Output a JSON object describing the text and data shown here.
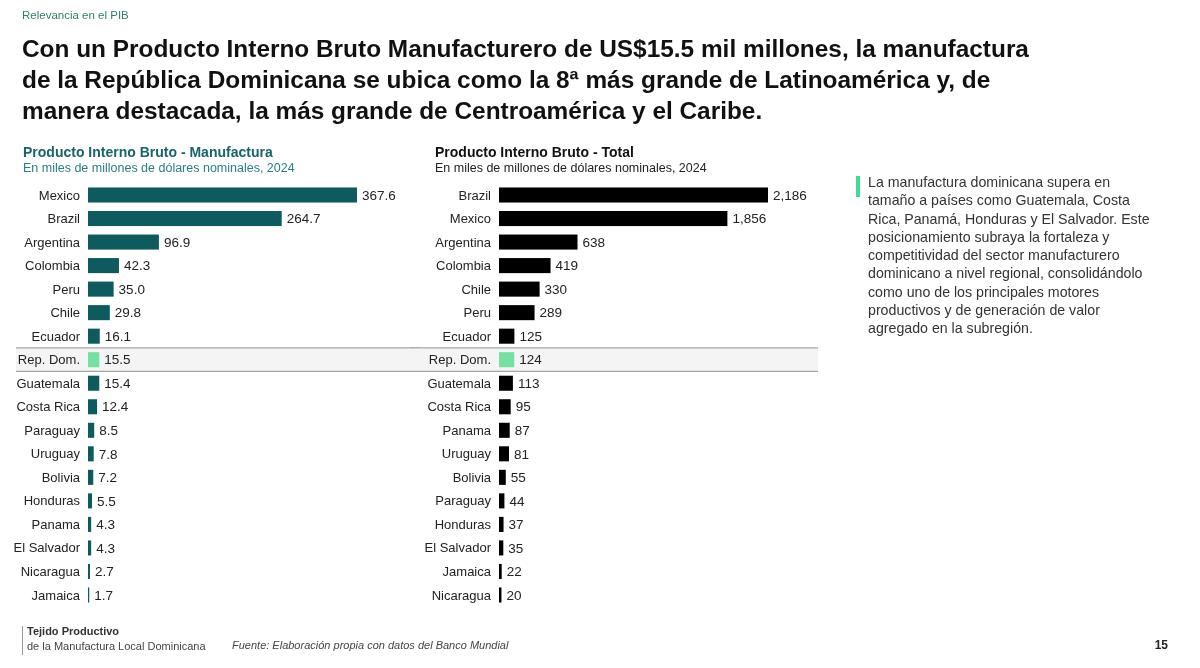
{
  "chart_data": [
    {
      "type": "other",
      "title": "Con un Producto Interno Bruto Manufacturero de US$15.5 mil millones, la manufactura de la República Dominicana se ubica como la 8ª más grande de Latinoamérica y, de manera destacada, la más grande de Centroamérica y el Caribe.",
      "annotations": [
        "Relevancia en el PIB"
      ]
    },
    {
      "type": "bar",
      "orientation": "horizontal",
      "title": "Producto Interno Bruto - Manufactura",
      "subtitle": "En miles de millones de dólares nominales, 2024",
      "categories": [
        "Mexico",
        "Brazil",
        "Argentina",
        "Colombia",
        "Peru",
        "Chile",
        "Ecuador",
        "Rep. Dom.",
        "Guatemala",
        "Costa Rica",
        "Paraguay",
        "Uruguay",
        "Bolivia",
        "Honduras",
        "Panama",
        "El Salvador",
        "Nicaragua",
        "Jamaica"
      ],
      "values": [
        367.6,
        264.7,
        96.9,
        42.3,
        35.0,
        29.8,
        16.1,
        15.5,
        15.4,
        12.4,
        8.5,
        7.8,
        7.2,
        5.5,
        4.3,
        4.3,
        2.7,
        1.7
      ],
      "value_labels": [
        "367.6",
        "264.7",
        "96.9",
        "42.3",
        "35.0",
        "29.8",
        "16.1",
        "15.5",
        "15.4",
        "12.4",
        "8.5",
        "7.8",
        "7.2",
        "5.5",
        "4.3",
        "4.3",
        "2.7",
        "1.7"
      ],
      "colors": [
        "#0d5a5f",
        "#0d5a5f",
        "#0d5a5f",
        "#0d5a5f",
        "#0d5a5f",
        "#0d5a5f",
        "#0d5a5f",
        "#74e0a2",
        "#0d5a5f",
        "#0d5a5f",
        "#0d5a5f",
        "#0d5a5f",
        "#0d5a5f",
        "#0d5a5f",
        "#0d5a5f",
        "#0d5a5f",
        "#0d5a5f",
        "#0d5a5f"
      ],
      "bands": [
        {
          "axis": "y",
          "from": "Rep. Dom.",
          "to": "Rep. Dom.",
          "color": "#f4f4f4"
        }
      ],
      "tick_labels": "y"
    },
    {
      "type": "bar",
      "orientation": "horizontal",
      "title": "Producto Interno Bruto - Total",
      "subtitle": "En miles de millones de dólares nominales, 2024",
      "categories": [
        "Brazil",
        "Mexico",
        "Argentina",
        "Colombia",
        "Chile",
        "Peru",
        "Ecuador",
        "Rep. Dom.",
        "Guatemala",
        "Costa Rica",
        "Panama",
        "Uruguay",
        "Bolivia",
        "Paraguay",
        "Honduras",
        "El Salvador",
        "Jamaica",
        "Nicaragua"
      ],
      "values": [
        2186,
        1856,
        638,
        419,
        330,
        289,
        125,
        124,
        113,
        95,
        87,
        81,
        55,
        44,
        37,
        35,
        22,
        20
      ],
      "value_labels": [
        "2,186",
        "1,856",
        "638",
        "419",
        "330",
        "289",
        "125",
        "124",
        "113",
        "95",
        "87",
        "81",
        "55",
        "44",
        "37",
        "35",
        "22",
        "20"
      ],
      "colors": [
        "#000000",
        "#000000",
        "#000000",
        "#000000",
        "#000000",
        "#000000",
        "#000000",
        "#74e0a2",
        "#000000",
        "#000000",
        "#000000",
        "#000000",
        "#000000",
        "#000000",
        "#000000",
        "#000000",
        "#000000",
        "#000000"
      ],
      "bands": [
        {
          "axis": "y",
          "from": "Rep. Dom.",
          "to": "Rep. Dom.",
          "color": "#f4f4f4"
        }
      ],
      "tick_labels": "y"
    },
    {
      "type": "other",
      "annotations": [
        "La manufactura dominicana supera en tamaño a países como Guatemala, Costa Rica, Panamá, Honduras y El Salvador. Este posicionamiento subraya la fortaleza y competitividad del sector manufacturero dominicano a nivel regional, consolidándolo como uno de los principales motores productivos y de generación de valor agregado en la subregión."
      ]
    },
    {
      "type": "other",
      "annotations": [
        "Tejido Productivo",
        "de la Manufactura Local Dominicana",
        "Fuente: Elaboración propia con datos del Banco Mundial",
        "15"
      ]
    }
  ]
}
